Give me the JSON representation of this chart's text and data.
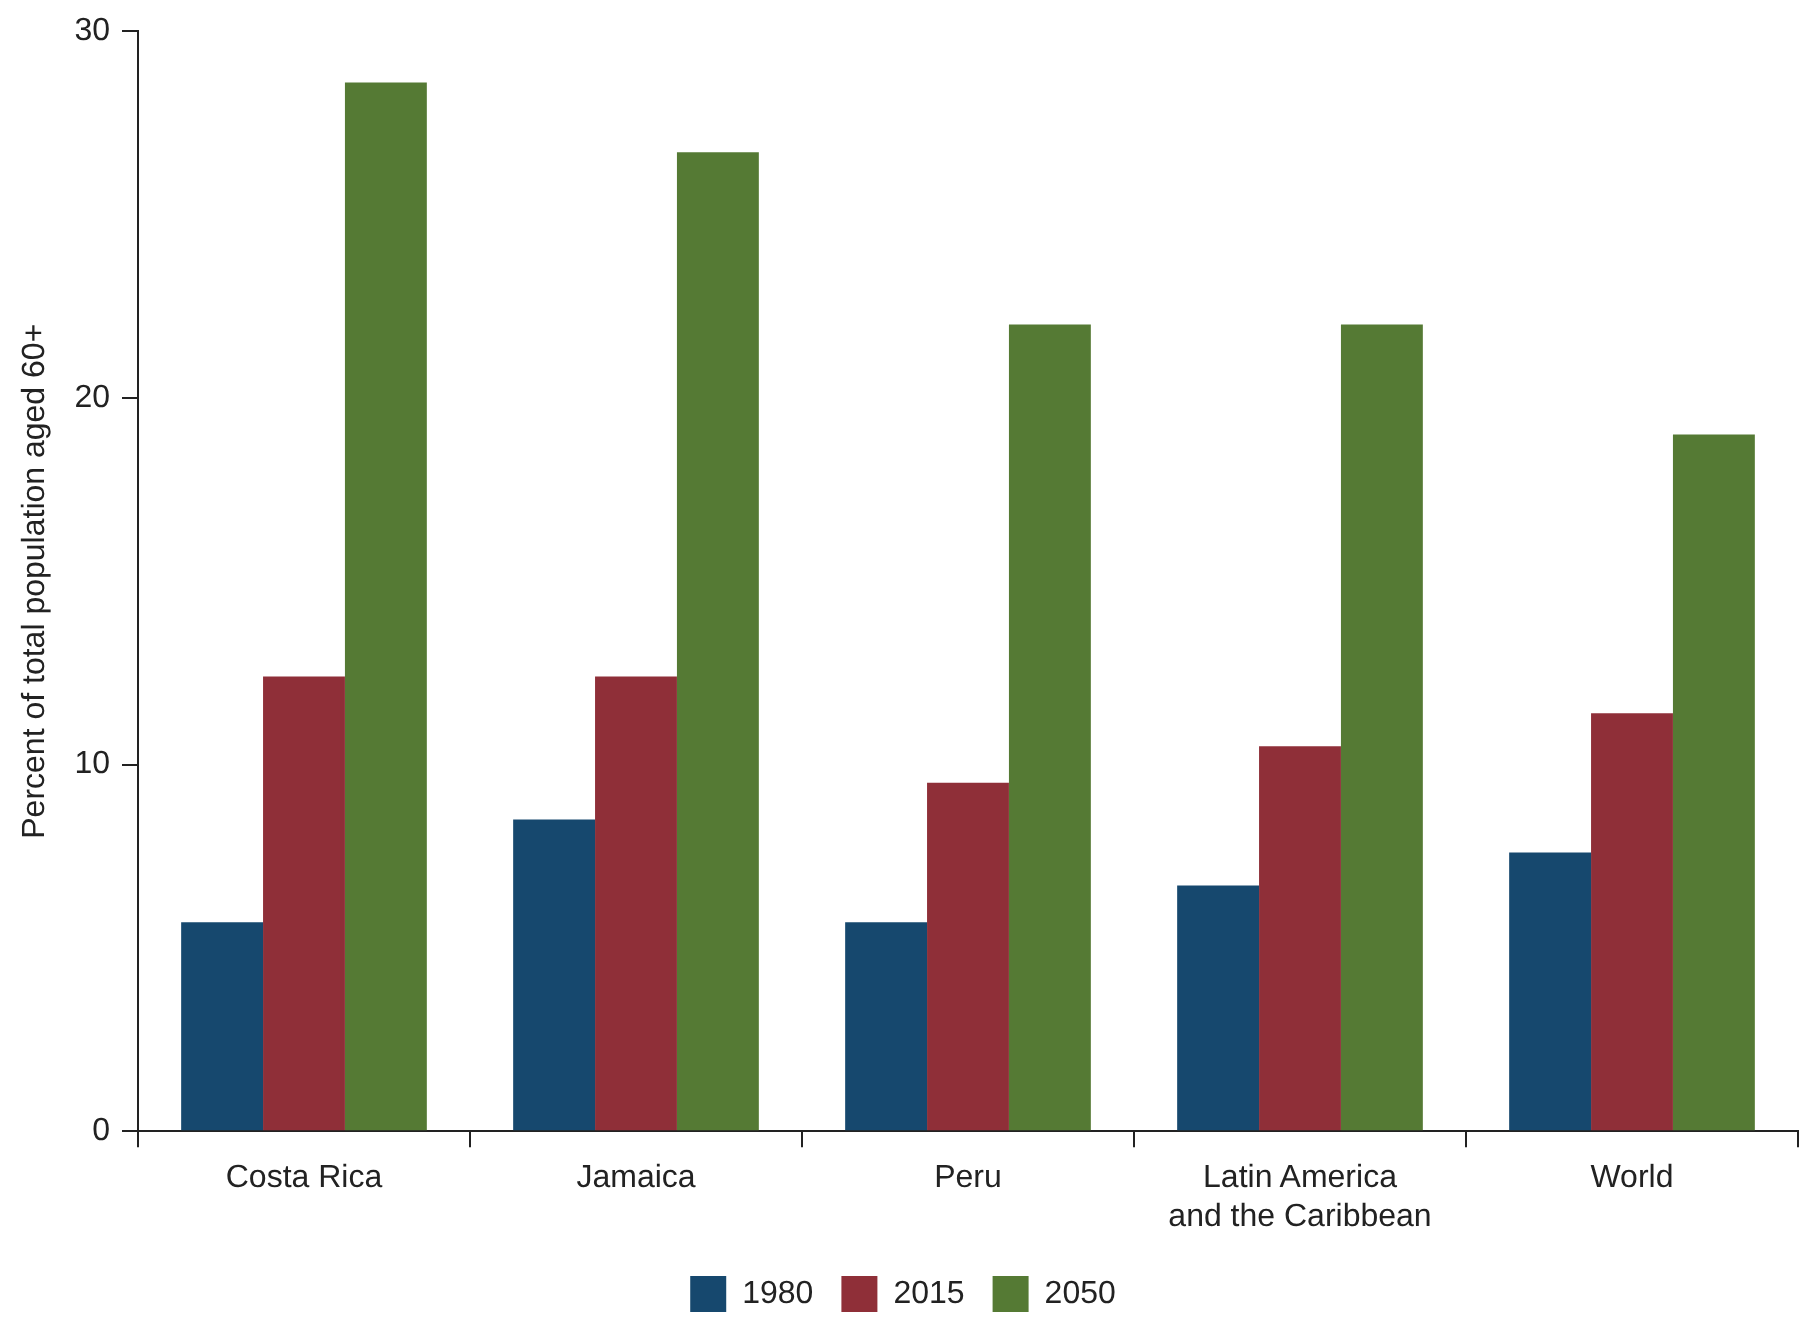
{
  "chart_data": {
    "type": "bar",
    "ylabel": "Percent of total population aged 60+",
    "categories": [
      "Costa Rica",
      "Jamaica",
      "Peru",
      "Latin America\nand the Caribbean",
      "World"
    ],
    "series": [
      {
        "name": "1980",
        "color": "#16486e",
        "values": [
          5.7,
          8.5,
          5.7,
          6.7,
          7.6
        ]
      },
      {
        "name": "2015",
        "color": "#8f2f38",
        "values": [
          12.4,
          12.4,
          9.5,
          10.5,
          11.4
        ]
      },
      {
        "name": "2050",
        "color": "#557a34",
        "values": [
          28.6,
          26.7,
          22.0,
          22.0,
          19.0
        ]
      }
    ],
    "ylim": [
      0,
      30
    ],
    "yticks": [
      0,
      10,
      20,
      30
    ],
    "grid": false,
    "legend": "bottom"
  }
}
